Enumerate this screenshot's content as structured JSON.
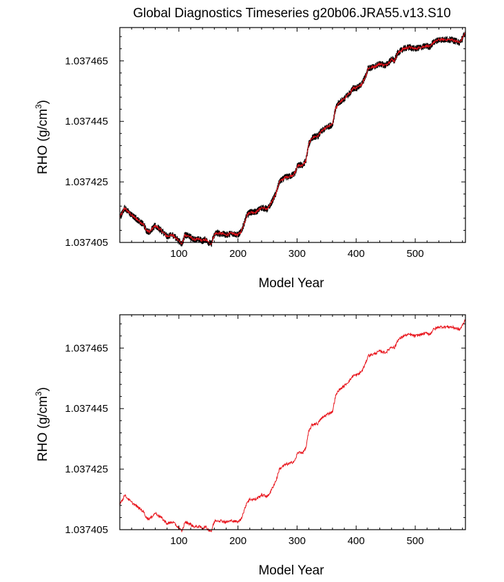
{
  "title": "Global Diagnostics Timeseries g20b06.JRA55.v13.S10",
  "chart_data": [
    {
      "type": "line",
      "xlabel": "Model Year",
      "ylabel_main": "RHO (g/cm",
      "ylabel_sup": "3",
      "ylabel_close": ")",
      "xlim": [
        0,
        585
      ],
      "ylim": [
        1.037405,
        1.037476
      ],
      "xticks": [
        100,
        200,
        300,
        400,
        500
      ],
      "yticks": [
        1.037405,
        1.037425,
        1.037445,
        1.037465
      ],
      "ytick_labels": [
        "1.037405",
        "1.037425",
        "1.037445",
        "1.037465"
      ],
      "series": [
        {
          "style": "monthly-black-with-red-mean",
          "color_band": "#000000",
          "color_line": "#e8141c",
          "x": [
            0,
            5,
            8,
            10,
            20,
            30,
            40,
            45,
            50,
            60,
            70,
            80,
            90,
            100,
            105,
            108,
            110,
            118,
            125,
            135,
            140,
            145,
            150,
            155,
            158,
            160,
            162,
            170,
            180,
            190,
            200,
            205,
            210,
            215,
            220,
            230,
            240,
            250,
            255,
            260,
            265,
            270,
            280,
            290,
            297,
            300,
            303,
            310,
            315,
            318,
            320,
            325,
            330,
            335,
            340,
            350,
            360,
            362,
            365,
            370,
            380,
            390,
            395,
            400,
            405,
            410,
            415,
            418,
            420,
            430,
            440,
            450,
            460,
            465,
            470,
            480,
            490,
            500,
            510,
            520,
            525,
            530,
            540,
            550,
            560,
            570,
            575,
            580,
            585
          ],
          "y": [
            1.0374135,
            1.037415,
            1.0374165,
            1.037416,
            1.037414,
            1.0374125,
            1.037411,
            1.037409,
            1.0374085,
            1.0374105,
            1.037409,
            1.037407,
            1.0374075,
            1.0374055,
            1.0374045,
            1.037406,
            1.0374075,
            1.037407,
            1.037406,
            1.037406,
            1.0374055,
            1.037406,
            1.037405,
            1.0374045,
            1.0374065,
            1.0374075,
            1.037408,
            1.037408,
            1.0374075,
            1.037408,
            1.0374075,
            1.0374085,
            1.037411,
            1.037414,
            1.037415,
            1.037415,
            1.0374165,
            1.037416,
            1.0374175,
            1.0374195,
            1.0374215,
            1.037425,
            1.0374265,
            1.037427,
            1.037428,
            1.03743,
            1.0374305,
            1.0374305,
            1.037432,
            1.0374355,
            1.0374375,
            1.0374395,
            1.03744,
            1.03744,
            1.0374415,
            1.037443,
            1.037444,
            1.037446,
            1.037449,
            1.037451,
            1.0374525,
            1.0374545,
            1.037456,
            1.037456,
            1.0374565,
            1.0374575,
            1.0374595,
            1.037461,
            1.0374625,
            1.037463,
            1.037464,
            1.0374635,
            1.0374655,
            1.037465,
            1.0374675,
            1.037469,
            1.0374695,
            1.037469,
            1.0374695,
            1.03747,
            1.0374695,
            1.037471,
            1.037472,
            1.037472,
            1.037472,
            1.0374715,
            1.037471,
            1.0374725,
            1.0374745
          ]
        }
      ]
    },
    {
      "type": "line",
      "xlabel": "Model Year",
      "ylabel_main": "RHO (g/cm",
      "ylabel_sup": "3",
      "ylabel_close": ")",
      "xlim": [
        0,
        585
      ],
      "ylim": [
        1.037405,
        1.037476
      ],
      "xticks": [
        100,
        200,
        300,
        400,
        500
      ],
      "yticks": [
        1.037405,
        1.037425,
        1.037445,
        1.037465
      ],
      "ytick_labels": [
        "1.037405",
        "1.037425",
        "1.037445",
        "1.037465"
      ],
      "series": [
        {
          "style": "annual-red",
          "color_line": "#e8141c",
          "x": [
            0,
            5,
            8,
            10,
            20,
            30,
            40,
            45,
            50,
            60,
            70,
            80,
            90,
            100,
            105,
            108,
            110,
            118,
            125,
            135,
            140,
            145,
            150,
            155,
            158,
            160,
            162,
            170,
            180,
            190,
            200,
            205,
            210,
            215,
            220,
            230,
            240,
            250,
            255,
            260,
            265,
            270,
            280,
            290,
            297,
            300,
            303,
            310,
            315,
            318,
            320,
            325,
            330,
            335,
            340,
            350,
            360,
            362,
            365,
            370,
            380,
            390,
            395,
            400,
            405,
            410,
            415,
            418,
            420,
            430,
            440,
            450,
            460,
            465,
            470,
            480,
            490,
            500,
            510,
            520,
            525,
            530,
            540,
            550,
            560,
            570,
            575,
            580,
            585
          ],
          "y": [
            1.0374135,
            1.037415,
            1.0374165,
            1.037416,
            1.037414,
            1.0374125,
            1.037411,
            1.037409,
            1.0374085,
            1.0374105,
            1.037409,
            1.037407,
            1.0374075,
            1.0374055,
            1.0374045,
            1.037406,
            1.0374075,
            1.037407,
            1.037406,
            1.037406,
            1.0374055,
            1.037406,
            1.037405,
            1.0374045,
            1.0374065,
            1.0374075,
            1.037408,
            1.037408,
            1.0374075,
            1.037408,
            1.0374075,
            1.0374085,
            1.037411,
            1.037414,
            1.037415,
            1.037415,
            1.0374165,
            1.037416,
            1.0374175,
            1.0374195,
            1.0374215,
            1.037425,
            1.0374265,
            1.037427,
            1.037428,
            1.03743,
            1.0374305,
            1.0374305,
            1.037432,
            1.0374355,
            1.0374375,
            1.0374395,
            1.03744,
            1.03744,
            1.0374415,
            1.037443,
            1.037444,
            1.037446,
            1.037449,
            1.037451,
            1.0374525,
            1.0374545,
            1.037456,
            1.037456,
            1.0374565,
            1.0374575,
            1.0374595,
            1.037461,
            1.0374625,
            1.037463,
            1.037464,
            1.0374635,
            1.0374655,
            1.037465,
            1.0374675,
            1.037469,
            1.0374695,
            1.037469,
            1.0374695,
            1.03747,
            1.0374695,
            1.037471,
            1.037472,
            1.037472,
            1.037472,
            1.0374715,
            1.037471,
            1.0374725,
            1.0374745
          ]
        }
      ]
    }
  ]
}
